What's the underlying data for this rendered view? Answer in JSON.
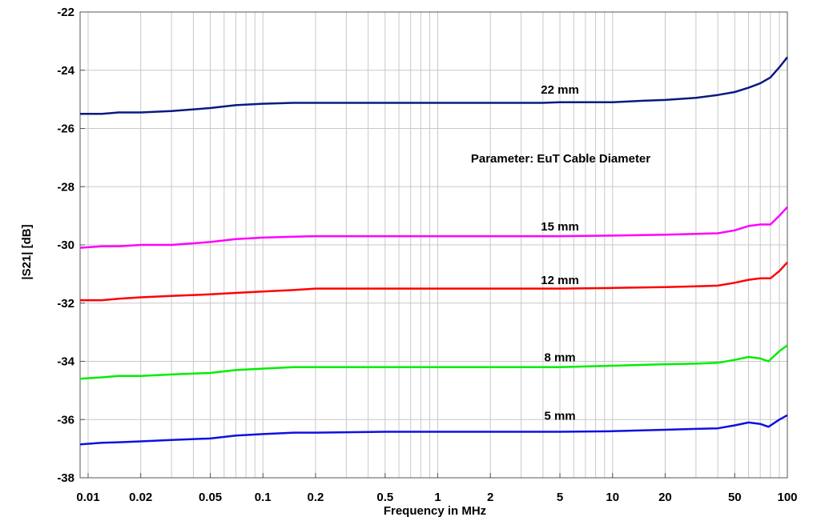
{
  "chart_data": {
    "type": "line",
    "xlabel": "Frequency in MHz",
    "ylabel": "|S21| [dB]",
    "annotation": "Parameter: EuT Cable Diameter",
    "xscale": "log",
    "xlim": [
      0.009,
      100
    ],
    "ylim": [
      -38,
      -22
    ],
    "grid": true,
    "x_ticks": [
      {
        "value": 0.01,
        "label": "0.01"
      },
      {
        "value": 0.02,
        "label": "0.02"
      },
      {
        "value": 0.05,
        "label": "0.05"
      },
      {
        "value": 0.1,
        "label": "0.1"
      },
      {
        "value": 0.2,
        "label": "0.2"
      },
      {
        "value": 0.5,
        "label": "0.5"
      },
      {
        "value": 1,
        "label": "1"
      },
      {
        "value": 2,
        "label": "2"
      },
      {
        "value": 5,
        "label": "5"
      },
      {
        "value": 10,
        "label": "10"
      },
      {
        "value": 20,
        "label": "20"
      },
      {
        "value": 50,
        "label": "50"
      },
      {
        "value": 100,
        "label": "100"
      }
    ],
    "x_minor_grid": [
      0.03,
      0.04,
      0.06,
      0.07,
      0.08,
      0.09,
      0.3,
      0.4,
      0.6,
      0.7,
      0.8,
      0.9,
      3,
      4,
      6,
      7,
      8,
      9,
      30,
      40,
      60,
      70,
      80,
      90
    ],
    "y_ticks": [
      {
        "value": -22,
        "label": "-22"
      },
      {
        "value": -24,
        "label": "-24"
      },
      {
        "value": -26,
        "label": "-26"
      },
      {
        "value": -28,
        "label": "-28"
      },
      {
        "value": -30,
        "label": "-30"
      },
      {
        "value": -32,
        "label": "-32"
      },
      {
        "value": -34,
        "label": "-34"
      },
      {
        "value": -36,
        "label": "-36"
      },
      {
        "value": -38,
        "label": "-38"
      }
    ],
    "series": [
      {
        "name": "22 mm",
        "color": "#0a1a80",
        "label_at": [
          5,
          -24.8
        ],
        "points": [
          [
            0.009,
            -25.5
          ],
          [
            0.012,
            -25.5
          ],
          [
            0.015,
            -25.45
          ],
          [
            0.02,
            -25.45
          ],
          [
            0.03,
            -25.4
          ],
          [
            0.05,
            -25.3
          ],
          [
            0.07,
            -25.2
          ],
          [
            0.1,
            -25.15
          ],
          [
            0.15,
            -25.12
          ],
          [
            0.2,
            -25.12
          ],
          [
            0.5,
            -25.12
          ],
          [
            1,
            -25.12
          ],
          [
            2,
            -25.12
          ],
          [
            4,
            -25.12
          ],
          [
            5,
            -25.1
          ],
          [
            10,
            -25.1
          ],
          [
            15,
            -25.05
          ],
          [
            20,
            -25.02
          ],
          [
            30,
            -24.95
          ],
          [
            40,
            -24.85
          ],
          [
            50,
            -24.75
          ],
          [
            60,
            -24.6
          ],
          [
            70,
            -24.45
          ],
          [
            80,
            -24.25
          ],
          [
            90,
            -23.9
          ],
          [
            100,
            -23.55
          ]
        ]
      },
      {
        "name": "15 mm",
        "color": "#ff00ff",
        "label_at": [
          5,
          -29.5
        ],
        "points": [
          [
            0.009,
            -30.1
          ],
          [
            0.012,
            -30.05
          ],
          [
            0.015,
            -30.05
          ],
          [
            0.02,
            -30.0
          ],
          [
            0.03,
            -30.0
          ],
          [
            0.05,
            -29.9
          ],
          [
            0.07,
            -29.8
          ],
          [
            0.1,
            -29.75
          ],
          [
            0.15,
            -29.72
          ],
          [
            0.2,
            -29.7
          ],
          [
            0.5,
            -29.7
          ],
          [
            1,
            -29.7
          ],
          [
            2,
            -29.7
          ],
          [
            5,
            -29.7
          ],
          [
            10,
            -29.68
          ],
          [
            20,
            -29.65
          ],
          [
            30,
            -29.62
          ],
          [
            40,
            -29.6
          ],
          [
            50,
            -29.5
          ],
          [
            60,
            -29.35
          ],
          [
            70,
            -29.3
          ],
          [
            80,
            -29.3
          ],
          [
            90,
            -29.0
          ],
          [
            100,
            -28.7
          ]
        ]
      },
      {
        "name": "12 mm",
        "color": "#ff0000",
        "label_at": [
          5,
          -31.35
        ],
        "points": [
          [
            0.009,
            -31.9
          ],
          [
            0.012,
            -31.9
          ],
          [
            0.015,
            -31.85
          ],
          [
            0.02,
            -31.8
          ],
          [
            0.03,
            -31.75
          ],
          [
            0.05,
            -31.7
          ],
          [
            0.07,
            -31.65
          ],
          [
            0.1,
            -31.6
          ],
          [
            0.15,
            -31.55
          ],
          [
            0.2,
            -31.5
          ],
          [
            0.5,
            -31.5
          ],
          [
            1,
            -31.5
          ],
          [
            2,
            -31.5
          ],
          [
            5,
            -31.5
          ],
          [
            10,
            -31.48
          ],
          [
            20,
            -31.45
          ],
          [
            30,
            -31.42
          ],
          [
            40,
            -31.4
          ],
          [
            50,
            -31.3
          ],
          [
            60,
            -31.2
          ],
          [
            70,
            -31.15
          ],
          [
            80,
            -31.15
          ],
          [
            90,
            -30.9
          ],
          [
            100,
            -30.6
          ]
        ]
      },
      {
        "name": "8 mm",
        "color": "#00ee00",
        "label_at": [
          5,
          -34.0
        ],
        "points": [
          [
            0.009,
            -34.6
          ],
          [
            0.012,
            -34.55
          ],
          [
            0.015,
            -34.5
          ],
          [
            0.02,
            -34.5
          ],
          [
            0.03,
            -34.45
          ],
          [
            0.05,
            -34.4
          ],
          [
            0.07,
            -34.3
          ],
          [
            0.1,
            -34.25
          ],
          [
            0.15,
            -34.2
          ],
          [
            0.2,
            -34.2
          ],
          [
            0.5,
            -34.2
          ],
          [
            1,
            -34.2
          ],
          [
            2,
            -34.2
          ],
          [
            5,
            -34.2
          ],
          [
            10,
            -34.15
          ],
          [
            20,
            -34.1
          ],
          [
            30,
            -34.08
          ],
          [
            40,
            -34.05
          ],
          [
            50,
            -33.95
          ],
          [
            60,
            -33.85
          ],
          [
            70,
            -33.9
          ],
          [
            78,
            -34.0
          ],
          [
            90,
            -33.65
          ],
          [
            100,
            -33.45
          ]
        ]
      },
      {
        "name": "5 mm",
        "color": "#1010e0",
        "label_at": [
          5,
          -36.0
        ],
        "points": [
          [
            0.009,
            -36.85
          ],
          [
            0.012,
            -36.8
          ],
          [
            0.015,
            -36.78
          ],
          [
            0.02,
            -36.75
          ],
          [
            0.03,
            -36.7
          ],
          [
            0.05,
            -36.65
          ],
          [
            0.07,
            -36.55
          ],
          [
            0.1,
            -36.5
          ],
          [
            0.15,
            -36.45
          ],
          [
            0.2,
            -36.45
          ],
          [
            0.5,
            -36.42
          ],
          [
            1,
            -36.42
          ],
          [
            2,
            -36.42
          ],
          [
            5,
            -36.42
          ],
          [
            10,
            -36.4
          ],
          [
            20,
            -36.35
          ],
          [
            30,
            -36.32
          ],
          [
            40,
            -36.3
          ],
          [
            50,
            -36.2
          ],
          [
            60,
            -36.1
          ],
          [
            70,
            -36.15
          ],
          [
            78,
            -36.25
          ],
          [
            90,
            -36.0
          ],
          [
            100,
            -35.85
          ]
        ]
      }
    ]
  }
}
